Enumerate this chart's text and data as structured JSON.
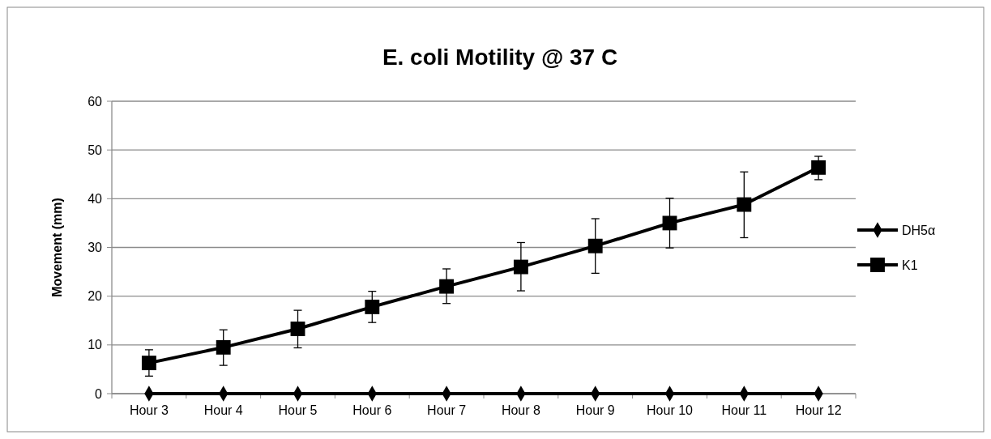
{
  "chart_data": {
    "type": "line",
    "title": "E. coli Motility @ 37 C",
    "ylabel": "Movement (mm)",
    "categories": [
      "Hour 3",
      "Hour 4",
      "Hour 5",
      "Hour 6",
      "Hour 7",
      "Hour 8",
      "Hour 9",
      "Hour 10",
      "Hour 11",
      "Hour 12"
    ],
    "series": [
      {
        "name": "DH5α",
        "color": "#000000",
        "marker": "diamond",
        "values": [
          0,
          0,
          0,
          0,
          0,
          0,
          0,
          0,
          0,
          0
        ]
      },
      {
        "name": "K1",
        "color": "#000000",
        "marker": "square",
        "values": [
          6.3,
          9.5,
          13.3,
          17.8,
          22,
          26,
          30.3,
          35,
          38.8,
          46.4
        ],
        "errors": [
          [
            3.6,
            9
          ],
          [
            5.8,
            13.1
          ],
          [
            9.4,
            17.1
          ],
          [
            14.6,
            21
          ],
          [
            18.5,
            25.6
          ],
          [
            21.1,
            31
          ],
          [
            24.7,
            35.9
          ],
          [
            29.9,
            40.1
          ],
          [
            32,
            45.5
          ],
          [
            43.9,
            48.7
          ]
        ]
      }
    ],
    "ylim": [
      0,
      60
    ],
    "yticks": [
      0,
      10,
      20,
      30,
      40,
      50,
      60
    ],
    "grid": "y",
    "legend": "right"
  }
}
